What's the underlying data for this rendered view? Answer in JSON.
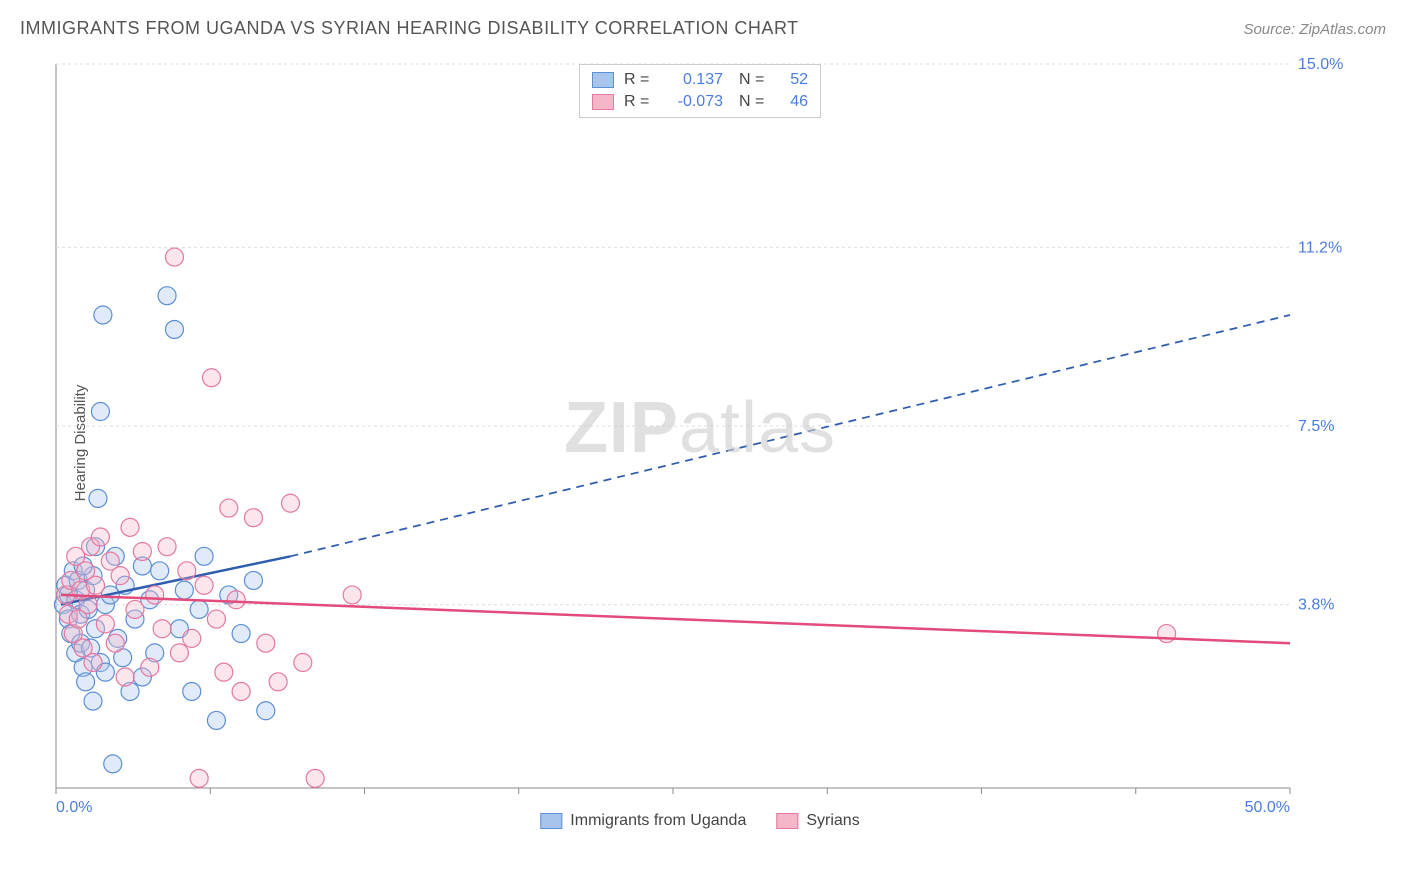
{
  "title": "IMMIGRANTS FROM UGANDA VS SYRIAN HEARING DISABILITY CORRELATION CHART",
  "source": "Source: ZipAtlas.com",
  "watermark_bold": "ZIP",
  "watermark_rest": "atlas",
  "y_axis_label": "Hearing Disability",
  "chart": {
    "type": "scatter",
    "background_color": "#ffffff",
    "grid_color": "#dddddd",
    "axis_color": "#888888",
    "xlim": [
      0,
      50
    ],
    "ylim": [
      0,
      15
    ],
    "y_ticks": [
      3.8,
      7.5,
      11.2,
      15.0
    ],
    "y_tick_labels": [
      "3.8%",
      "7.5%",
      "11.2%",
      "15.0%"
    ],
    "y_tick_color": "#4a7de0",
    "x_min_label": "0.0%",
    "x_max_label": "50.0%",
    "x_label_color": "#4a7de0",
    "x_ticks": [
      0,
      6.25,
      12.5,
      18.75,
      25,
      31.25,
      37.5,
      43.75,
      50
    ],
    "marker_radius": 9,
    "marker_stroke_width": 1.2,
    "marker_fill_opacity": 0.35,
    "series": [
      {
        "name": "Immigrants from Uganda",
        "color_fill": "#a7c4ec",
        "color_stroke": "#5b8fd6",
        "r_value": "0.137",
        "n_value": "52",
        "r_color": "#4a7de0",
        "trend": {
          "start": [
            0.2,
            3.8
          ],
          "solid_end": [
            9.5,
            4.8
          ],
          "dash_end": [
            50,
            9.8
          ],
          "color": "#2e5db0",
          "width": 2.5
        },
        "points": [
          [
            0.3,
            3.8
          ],
          [
            0.4,
            4.2
          ],
          [
            0.5,
            3.5
          ],
          [
            0.5,
            4.0
          ],
          [
            0.6,
            3.2
          ],
          [
            0.7,
            4.5
          ],
          [
            0.8,
            2.8
          ],
          [
            0.8,
            3.9
          ],
          [
            0.9,
            4.3
          ],
          [
            1.0,
            3.0
          ],
          [
            1.0,
            3.6
          ],
          [
            1.1,
            2.5
          ],
          [
            1.2,
            4.1
          ],
          [
            1.2,
            2.2
          ],
          [
            1.3,
            3.7
          ],
          [
            1.4,
            2.9
          ],
          [
            1.5,
            4.4
          ],
          [
            1.5,
            1.8
          ],
          [
            1.6,
            3.3
          ],
          [
            1.7,
            6.0
          ],
          [
            1.8,
            7.8
          ],
          [
            1.8,
            2.6
          ],
          [
            1.9,
            9.8
          ],
          [
            2.0,
            3.8
          ],
          [
            2.0,
            2.4
          ],
          [
            2.2,
            4.0
          ],
          [
            2.3,
            0.5
          ],
          [
            2.5,
            3.1
          ],
          [
            2.7,
            2.7
          ],
          [
            2.8,
            4.2
          ],
          [
            3.0,
            2.0
          ],
          [
            3.2,
            3.5
          ],
          [
            3.5,
            4.6
          ],
          [
            3.5,
            2.3
          ],
          [
            3.8,
            3.9
          ],
          [
            4.0,
            2.8
          ],
          [
            4.2,
            4.5
          ],
          [
            4.5,
            10.2
          ],
          [
            4.8,
            9.5
          ],
          [
            5.0,
            3.3
          ],
          [
            5.2,
            4.1
          ],
          [
            5.5,
            2.0
          ],
          [
            5.8,
            3.7
          ],
          [
            6.0,
            4.8
          ],
          [
            6.5,
            1.4
          ],
          [
            7.0,
            4.0
          ],
          [
            7.5,
            3.2
          ],
          [
            8.0,
            4.3
          ],
          [
            8.5,
            1.6
          ],
          [
            1.6,
            5.0
          ],
          [
            2.4,
            4.8
          ],
          [
            1.1,
            4.6
          ]
        ]
      },
      {
        "name": "Syrians",
        "color_fill": "#f5b6c8",
        "color_stroke": "#e478a0",
        "r_value": "-0.073",
        "n_value": "46",
        "r_color": "#4a7de0",
        "trend": {
          "start": [
            0.2,
            4.0
          ],
          "solid_end": [
            50,
            3.0
          ],
          "dash_end": null,
          "color": "#e24b7a",
          "width": 2.5
        },
        "points": [
          [
            0.4,
            4.0
          ],
          [
            0.5,
            3.6
          ],
          [
            0.6,
            4.3
          ],
          [
            0.7,
            3.2
          ],
          [
            0.8,
            4.8
          ],
          [
            0.9,
            3.5
          ],
          [
            1.0,
            4.1
          ],
          [
            1.1,
            2.9
          ],
          [
            1.2,
            4.5
          ],
          [
            1.3,
            3.8
          ],
          [
            1.4,
            5.0
          ],
          [
            1.5,
            2.6
          ],
          [
            1.6,
            4.2
          ],
          [
            1.8,
            5.2
          ],
          [
            2.0,
            3.4
          ],
          [
            2.2,
            4.7
          ],
          [
            2.4,
            3.0
          ],
          [
            2.6,
            4.4
          ],
          [
            2.8,
            2.3
          ],
          [
            3.0,
            5.4
          ],
          [
            3.2,
            3.7
          ],
          [
            3.5,
            4.9
          ],
          [
            3.8,
            2.5
          ],
          [
            4.0,
            4.0
          ],
          [
            4.3,
            3.3
          ],
          [
            4.5,
            5.0
          ],
          [
            4.8,
            11.0
          ],
          [
            5.0,
            2.8
          ],
          [
            5.3,
            4.5
          ],
          [
            5.5,
            3.1
          ],
          [
            5.8,
            0.2
          ],
          [
            6.0,
            4.2
          ],
          [
            6.3,
            8.5
          ],
          [
            6.5,
            3.5
          ],
          [
            6.8,
            2.4
          ],
          [
            7.0,
            5.8
          ],
          [
            7.3,
            3.9
          ],
          [
            7.5,
            2.0
          ],
          [
            8.0,
            5.6
          ],
          [
            8.5,
            3.0
          ],
          [
            9.0,
            2.2
          ],
          [
            9.5,
            5.9
          ],
          [
            10.0,
            2.6
          ],
          [
            10.5,
            0.2
          ],
          [
            12.0,
            4.0
          ],
          [
            45.0,
            3.2
          ]
        ]
      }
    ]
  },
  "legend_top": {
    "r_label": "R =",
    "n_label": "N ="
  },
  "legend_bottom": [
    {
      "label": "Immigrants from Uganda",
      "fill": "#a7c4ec",
      "stroke": "#5b8fd6"
    },
    {
      "label": "Syrians",
      "fill": "#f5b6c8",
      "stroke": "#e478a0"
    }
  ]
}
